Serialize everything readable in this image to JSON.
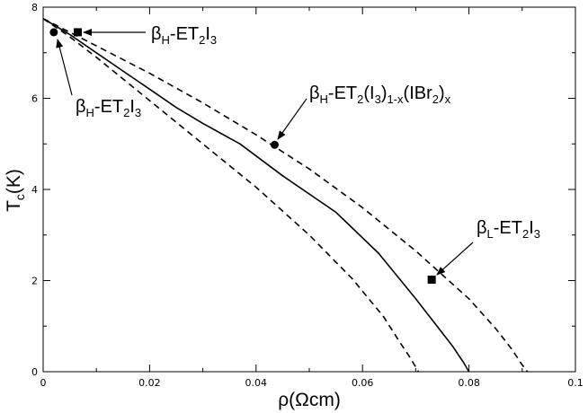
{
  "chart_data": {
    "type": "line",
    "xlabel": "ρ(Ωcm)",
    "ylabel": "T_c(K)",
    "xlim": [
      0,
      0.1
    ],
    "ylim": [
      0,
      8
    ],
    "x_ticks": [
      "0",
      "0.02",
      "0.04",
      "0.06",
      "0.08",
      "0.1"
    ],
    "y_ticks": [
      "0",
      "2",
      "4",
      "6",
      "8"
    ],
    "grid": false,
    "legend": "none",
    "series": [
      {
        "style": "solid",
        "x": [
          0.0,
          0.005,
          0.01,
          0.015,
          0.02,
          0.025,
          0.03,
          0.037,
          0.045,
          0.055,
          0.063,
          0.07,
          0.074,
          0.077,
          0.079,
          0.0795,
          0.08
        ],
        "y": [
          7.75,
          7.4,
          7.0,
          6.6,
          6.2,
          5.8,
          5.45,
          5.0,
          4.3,
          3.5,
          2.6,
          1.6,
          1.0,
          0.55,
          0.2,
          0.1,
          0.0
        ]
      },
      {
        "style": "dashed",
        "x": [
          0.0,
          0.005,
          0.01,
          0.02,
          0.03,
          0.04,
          0.05,
          0.06,
          0.07,
          0.08,
          0.085,
          0.088,
          0.09,
          0.091
        ],
        "y": [
          7.75,
          7.45,
          7.15,
          6.55,
          5.9,
          5.2,
          4.45,
          3.6,
          2.65,
          1.6,
          0.95,
          0.5,
          0.15,
          0.0
        ]
      },
      {
        "style": "dashed",
        "x": [
          0.0,
          0.005,
          0.01,
          0.02,
          0.03,
          0.04,
          0.05,
          0.058,
          0.064,
          0.067,
          0.069,
          0.07,
          0.0705
        ],
        "y": [
          7.75,
          7.35,
          6.9,
          5.95,
          5.0,
          4.05,
          3.0,
          2.05,
          1.2,
          0.65,
          0.3,
          0.1,
          0.0
        ]
      }
    ],
    "points": [
      {
        "marker": "circle",
        "x": 0.002,
        "y": 7.45
      },
      {
        "marker": "square",
        "x": 0.0065,
        "y": 7.45
      },
      {
        "marker": "circle",
        "x": 0.0435,
        "y": 4.98
      },
      {
        "marker": "square",
        "x": 0.073,
        "y": 2.02
      }
    ],
    "annotations": [
      {
        "id": "ann1",
        "label": "β_H-ET_2I_3"
      },
      {
        "id": "ann2",
        "label": "β_H-ET_2I_3"
      },
      {
        "id": "ann3",
        "label": "β_H-ET_2(I_3)_1-x(IBr_2)_x"
      },
      {
        "id": "ann4",
        "label": "β_L-ET_2I_3"
      }
    ]
  }
}
